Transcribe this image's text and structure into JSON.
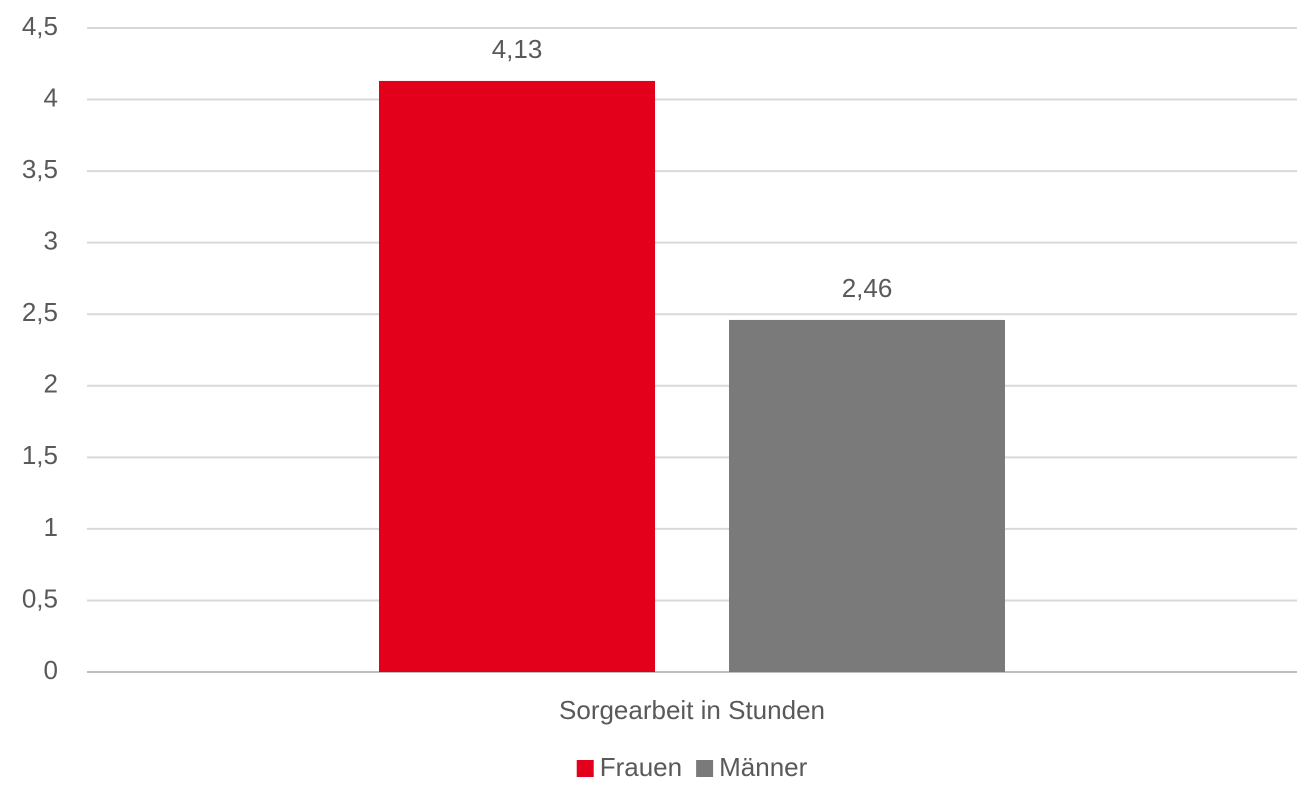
{
  "chart_data": {
    "type": "bar",
    "categories": [
      "Sorgearbeit in Stunden"
    ],
    "series": [
      {
        "name": "Frauen",
        "color": "#e2001a",
        "values": [
          4.13
        ],
        "value_labels": [
          "4,13"
        ]
      },
      {
        "name": "Männer",
        "color": "#7a7a7a",
        "values": [
          2.46
        ],
        "value_labels": [
          "2,46"
        ]
      }
    ],
    "ylim": [
      0,
      4.5
    ],
    "yticks": [
      0,
      {
        "value": 0.5,
        "label": "0,5"
      },
      1,
      {
        "value": 1.5,
        "label": "1,5"
      },
      2,
      {
        "value": 2.5,
        "label": "2,5"
      },
      3,
      {
        "value": 3.5,
        "label": "3,5"
      },
      4,
      {
        "value": 4.5,
        "label": "4,5"
      }
    ],
    "grid": true,
    "legend": "bottom"
  }
}
